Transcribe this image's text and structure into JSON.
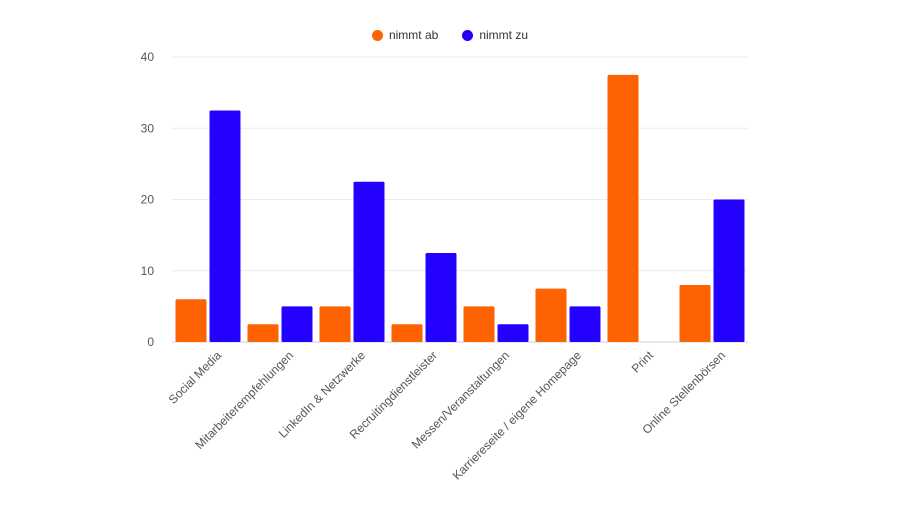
{
  "chart_data": {
    "type": "bar",
    "title": "",
    "xlabel": "",
    "ylabel": "",
    "ylim": [
      0,
      40
    ],
    "yticks": [
      0,
      10,
      20,
      30,
      40
    ],
    "grid": true,
    "legend_position": "top-center",
    "categories": [
      "Social Media",
      "Mitarbeiterempfehlungen",
      "LinkedIn & Netzwerke",
      "Recruitingdienstleister",
      "Messen/Veranstaltungen",
      "Karriereseite / eigene Homepage",
      "Print",
      "Online Stellenbörsen"
    ],
    "series": [
      {
        "name": "nimmt ab",
        "color": "#ff6200",
        "values": [
          6,
          2.5,
          5,
          2.5,
          5,
          7.5,
          37.5,
          8
        ]
      },
      {
        "name": "nimmt zu",
        "color": "#2400ff",
        "values": [
          32.5,
          5,
          22.5,
          12.5,
          2.5,
          5,
          0,
          20
        ]
      }
    ]
  }
}
